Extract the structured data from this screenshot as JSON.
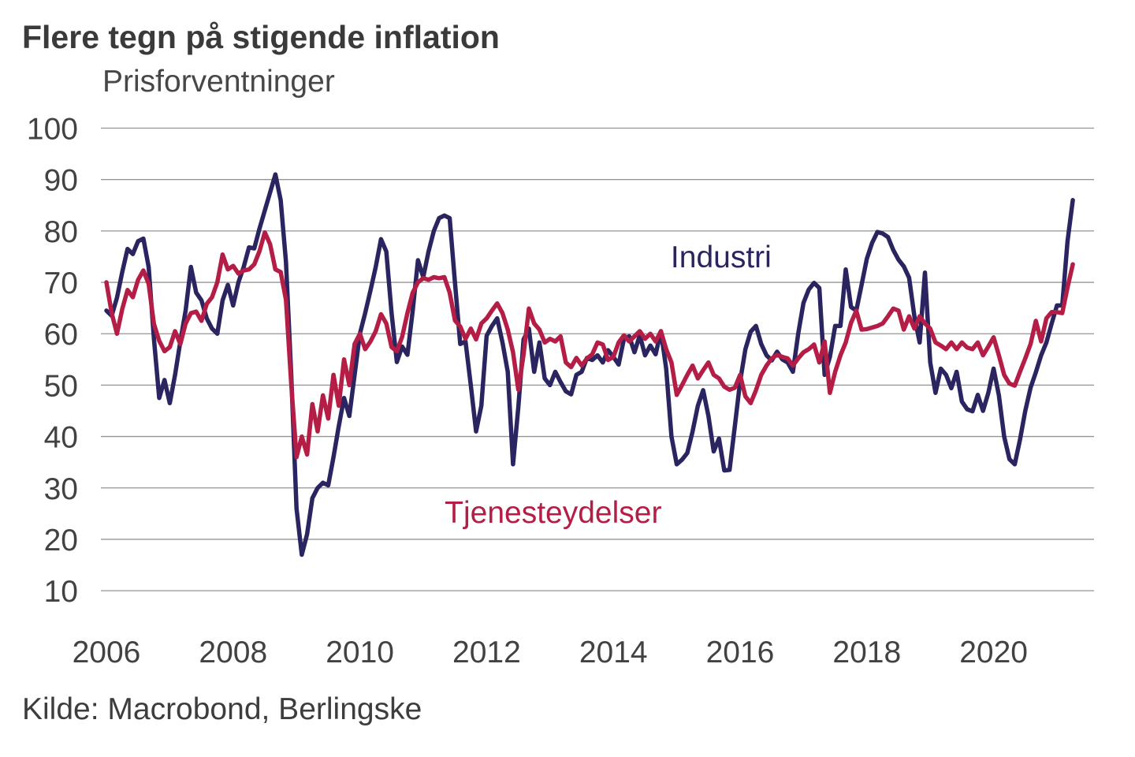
{
  "title": "Flere tegn på stigende inflation",
  "subtitle": "Prisforventninger",
  "source": "Kilde: Macrobond, Berlingske",
  "colors": {
    "industri": "#2a2560",
    "tjenesteydelser": "#b41e46",
    "grid": "#949494",
    "text": "#424242"
  },
  "chart_data": {
    "type": "line",
    "title": "Flere tegn på stigende inflation",
    "subtitle": "Prisforventninger",
    "xlabel": "",
    "ylabel": "",
    "ylim": [
      10,
      100
    ],
    "y_ticks": [
      100,
      90,
      80,
      70,
      60,
      50,
      40,
      30,
      20,
      10
    ],
    "x_ticks": [
      2006,
      2008,
      2010,
      2012,
      2014,
      2016,
      2018,
      2020
    ],
    "x_range_years": [
      2006.0,
      2021.25
    ],
    "x_step_months": 1,
    "grid": "horizontal",
    "legend_position": "inline-annotations",
    "series": [
      {
        "name": "Industri",
        "color": "#2a2560",
        "label_anchor": {
          "x_year": 2015.7,
          "value": 74.8
        },
        "values": [
          64.5,
          63.5,
          67,
          72,
          76.5,
          75.5,
          78,
          78.5,
          73,
          59,
          47.5,
          51,
          46.5,
          52,
          58.5,
          64.5,
          73,
          68,
          66.5,
          63,
          61,
          60,
          66.5,
          69.5,
          65.5,
          70,
          73,
          76.8,
          76.6,
          80.5,
          84,
          87.5,
          91,
          86,
          74,
          52,
          26,
          17,
          21,
          28,
          30,
          31,
          30.5,
          36,
          42,
          47.5,
          44,
          52,
          60,
          64,
          68.4,
          73,
          78.4,
          76,
          64,
          54.5,
          57.5,
          55.9,
          64.5,
          74.3,
          71,
          76,
          80,
          82.5,
          83,
          82.5,
          70,
          58,
          58.5,
          50,
          41,
          46,
          59.6,
          61.5,
          63,
          58.3,
          52.6,
          34.6,
          45.7,
          58.9,
          61,
          52.6,
          58.3,
          51.3,
          50,
          52.6,
          50.6,
          48.8,
          48.2,
          52,
          52.6,
          55.3,
          54.9,
          55.8,
          54.4,
          56.8,
          55.5,
          54,
          59,
          59.5,
          56.4,
          59.7,
          55.8,
          57.7,
          56,
          60.5,
          53.2,
          40,
          34.6,
          35.5,
          36.8,
          41,
          46,
          49,
          44,
          37.1,
          39.6,
          33.4,
          33.5,
          42,
          50.7,
          57,
          60.4,
          61.5,
          58,
          55.8,
          54.8,
          56.5,
          55,
          54.4,
          52.6,
          60,
          66,
          68.6,
          69.9,
          68.9,
          52,
          55.5,
          61.5,
          61.5,
          72.5,
          65.2,
          64.5,
          69.5,
          74.6,
          77.7,
          79.8,
          79.5,
          78.8,
          76.3,
          74.4,
          73.1,
          70.9,
          63.4,
          58.3,
          71.9,
          54.4,
          48.5,
          53.2,
          52,
          49.4,
          52.6,
          46.8,
          45.3,
          44.9,
          48.1,
          45,
          48.5,
          53.2,
          48,
          40,
          35.6,
          34.6,
          39.4,
          45,
          49.5,
          52.5,
          55.8,
          58.3,
          62,
          65.5,
          65.5,
          78,
          86
        ]
      },
      {
        "name": "Tjenesteydelser",
        "color": "#b41e46",
        "label_anchor": {
          "x_year": 2013.05,
          "value": 25.1
        },
        "values": [
          70,
          64,
          60,
          64.8,
          68.5,
          67.1,
          70.5,
          72.3,
          69.7,
          61.9,
          58.6,
          56.6,
          57.4,
          60.5,
          58,
          62,
          64,
          64.3,
          62.5,
          65.8,
          67.1,
          70,
          75.4,
          72.5,
          73.2,
          71.7,
          72.3,
          72.5,
          73.5,
          76.1,
          79.7,
          77.4,
          72.5,
          72,
          66.6,
          50.2,
          36,
          40,
          36.5,
          46.3,
          41,
          48,
          43.5,
          52,
          46,
          55,
          50,
          58,
          60,
          57,
          58.5,
          60.5,
          63.8,
          62,
          57.4,
          56.6,
          59.4,
          64,
          68,
          70,
          70.8,
          70.5,
          71,
          70.8,
          71,
          68,
          62.6,
          61.4,
          59,
          61,
          58.9,
          62,
          63,
          64.5,
          65.9,
          64,
          60.8,
          56.4,
          49.1,
          56,
          64.9,
          62,
          60.8,
          58.3,
          59,
          58.5,
          59.5,
          54.4,
          53.5,
          55.3,
          53.8,
          55.2,
          56,
          58.3,
          57.9,
          54.9,
          55.5,
          58.3,
          59.7,
          58.5,
          59.5,
          60.5,
          59,
          60,
          58.5,
          60.5,
          57,
          54.4,
          48.1,
          50,
          52,
          53.8,
          51.3,
          52.9,
          54.4,
          52,
          51.3,
          49.7,
          49.1,
          49.5,
          52,
          47.8,
          46.5,
          49,
          52,
          53.8,
          55.2,
          55.9,
          55.5,
          55.2,
          53.8,
          55.2,
          56.4,
          57,
          57.9,
          54.4,
          58.5,
          48.5,
          52.6,
          55.8,
          58.3,
          62.1,
          64.5,
          60.8,
          60.9,
          61.2,
          61.5,
          62,
          63.4,
          64.9,
          64.5,
          60.8,
          63.4,
          61,
          63.4,
          62,
          61,
          58.3,
          57.7,
          57,
          58.3,
          57,
          58.3,
          57.3,
          57,
          58.3,
          55.8,
          57.5,
          59.3,
          55.8,
          52,
          50.3,
          49.9,
          52.6,
          55.2,
          58,
          62.5,
          58.5,
          63,
          64.2,
          64.2,
          64,
          69,
          73.5
        ]
      }
    ]
  }
}
